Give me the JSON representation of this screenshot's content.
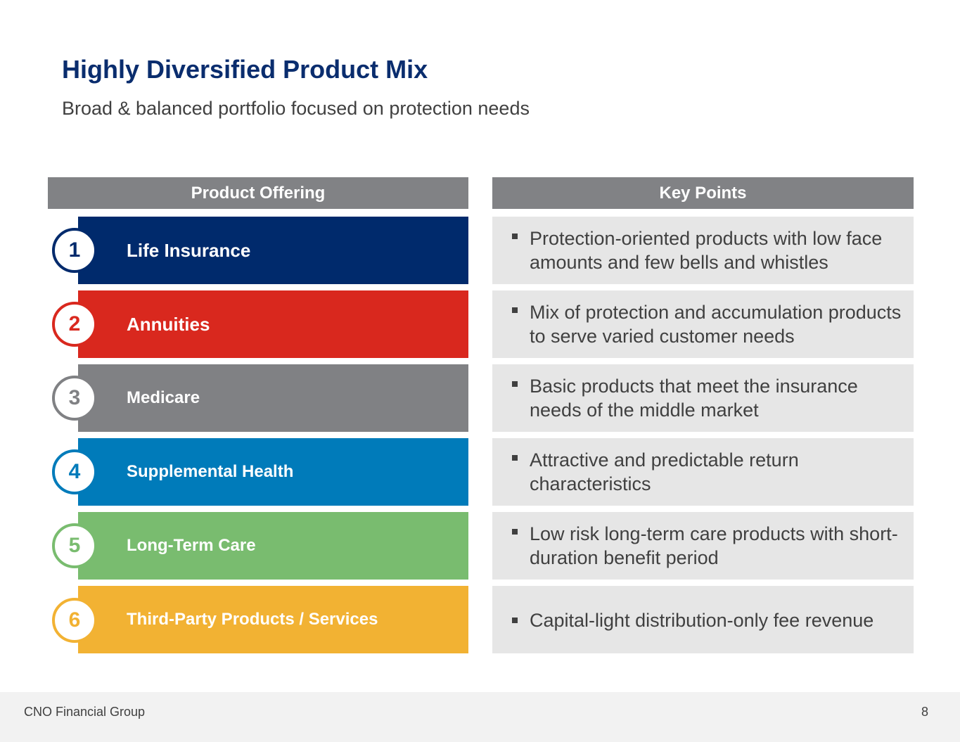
{
  "slide": {
    "title": "Highly Diversified Product Mix",
    "subtitle": "Broad & balanced portfolio focused on protection needs"
  },
  "table": {
    "left_header": "Product Offering",
    "right_header": "Key Points",
    "rows": [
      {
        "number": "1",
        "product": "Life Insurance",
        "color": "#002a6c",
        "point": "Protection-oriented products with low face amounts and few bells and whistles"
      },
      {
        "number": "2",
        "product": "Annuities",
        "color": "#d9281e",
        "point": "Mix of protection and accumulation products to serve varied customer needs"
      },
      {
        "number": "3",
        "product": "Medicare",
        "color": "#808184",
        "point": "Basic products that meet the insurance needs of the middle market"
      },
      {
        "number": "4",
        "product": "Supplemental Health",
        "color": "#007bba",
        "point": "Attractive and predictable return characteristics"
      },
      {
        "number": "5",
        "product": "Long-Term Care",
        "color": "#79bc6f",
        "point": "Low risk long-term care products with short-duration benefit period"
      },
      {
        "number": "6",
        "product": "Third-Party Products / Services",
        "color": "#f2b233",
        "point": "Capital-light distribution-only fee revenue"
      }
    ]
  },
  "footer": {
    "company": "CNO Financial Group",
    "page_number": "8"
  }
}
